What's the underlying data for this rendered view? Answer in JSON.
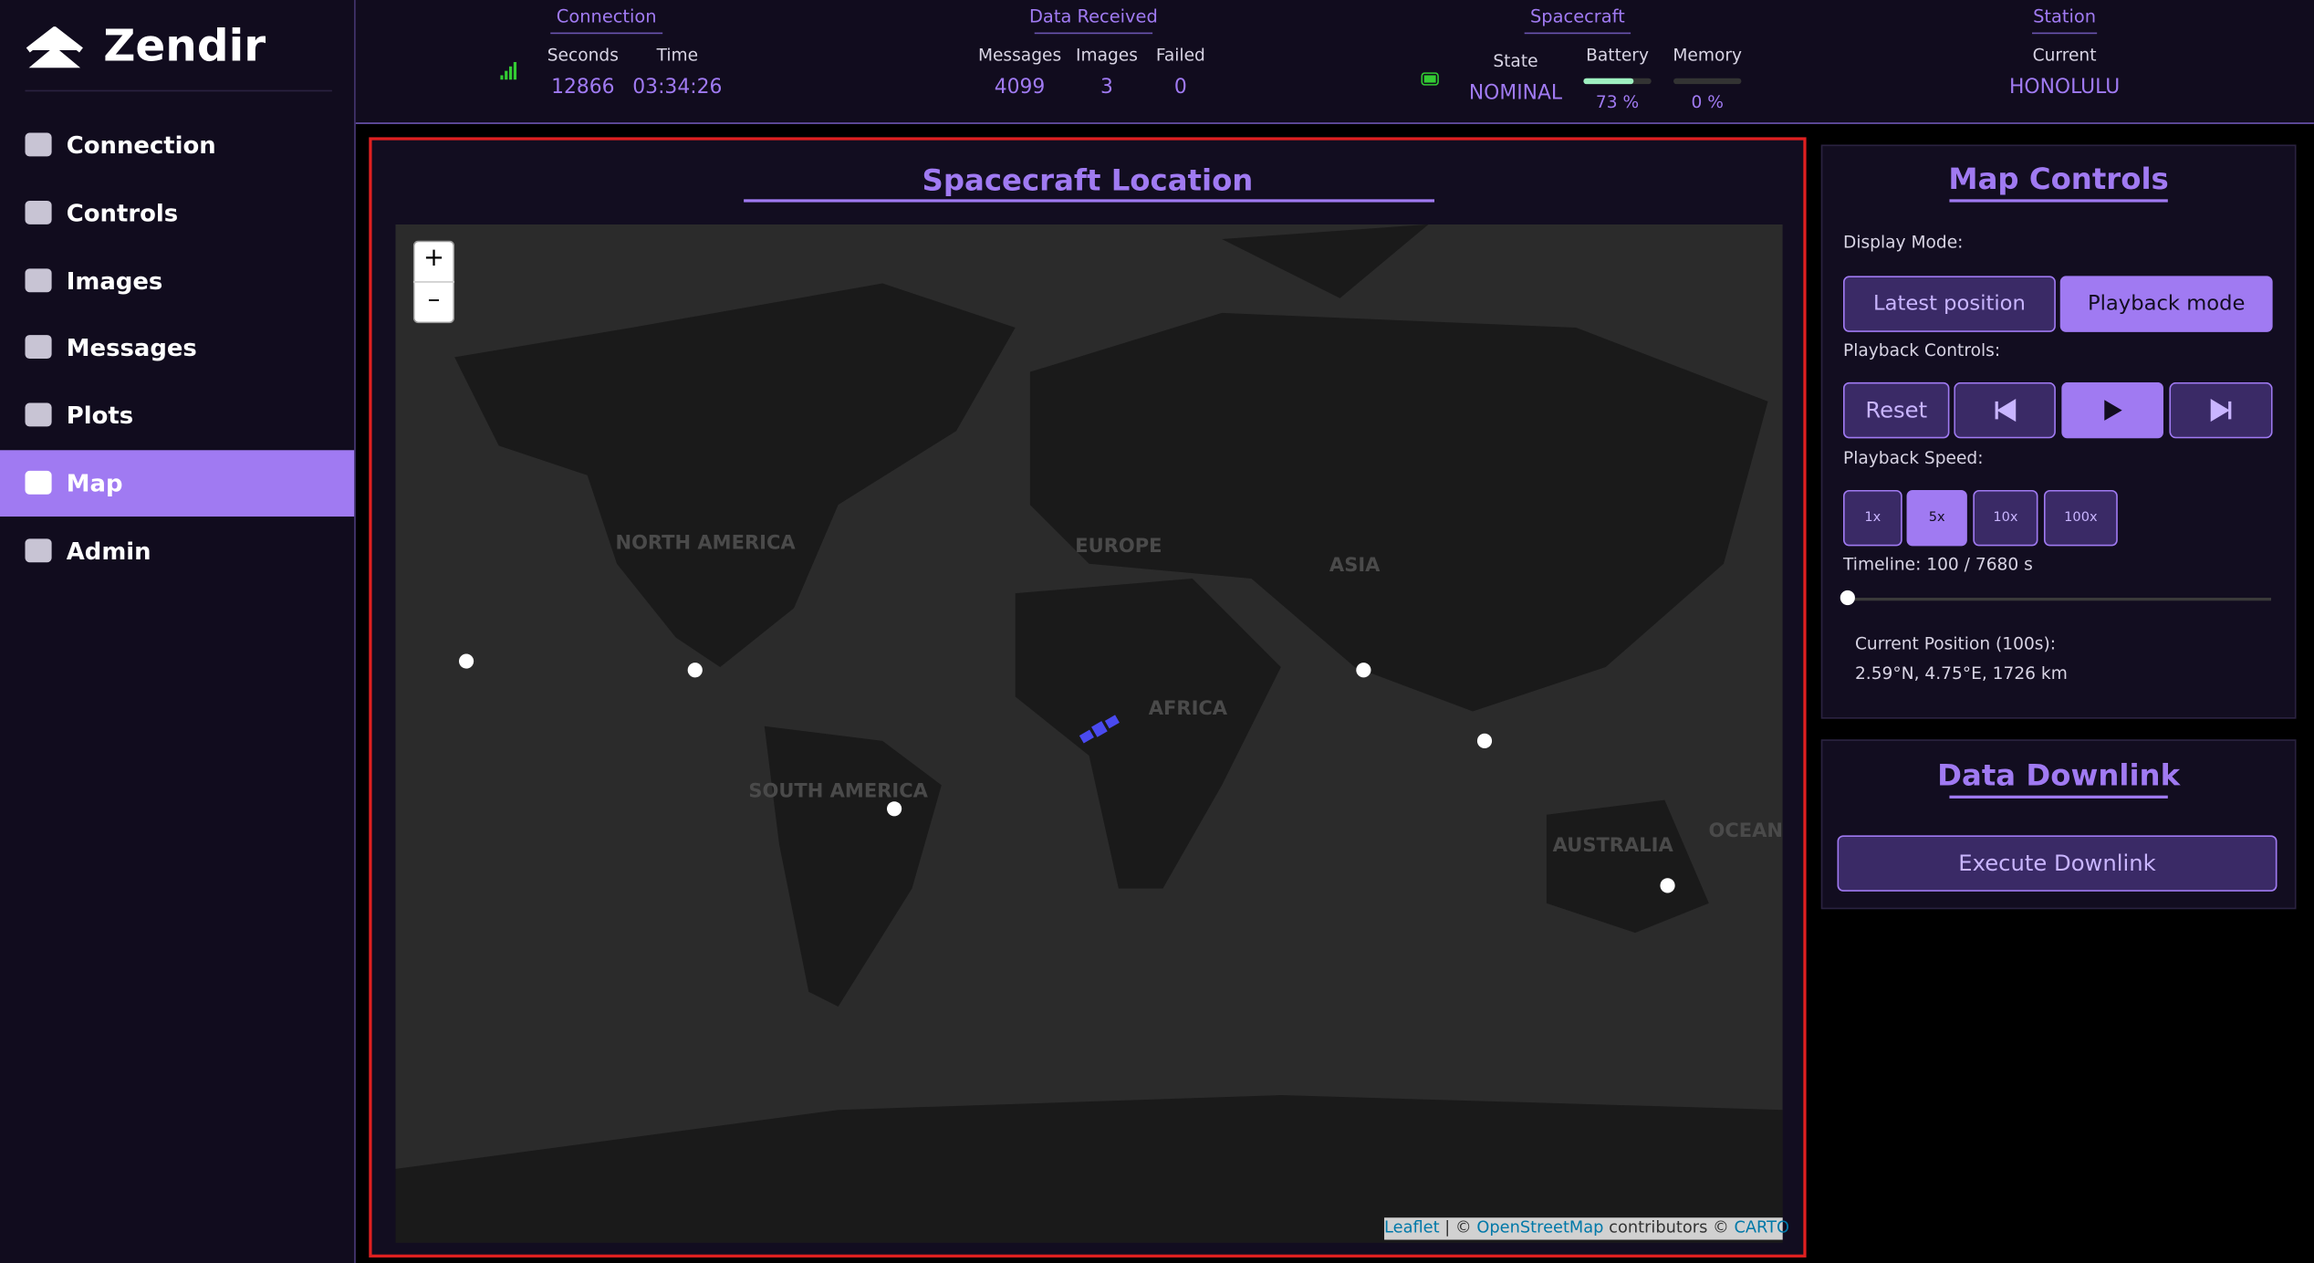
{
  "sidebar": {
    "brand": "Zendir",
    "nav": [
      "Connection",
      "Controls",
      "Images",
      "Messages",
      "Plots",
      "Map",
      "Admin"
    ]
  },
  "header": {
    "connection": {
      "title": "Connection",
      "seconds_label": "Seconds",
      "seconds": "12866",
      "time_label": "Time",
      "time": "03:34:26"
    },
    "data_received": {
      "title": "Data Received",
      "messages_label": "Messages",
      "messages": "4099",
      "images_label": "Images",
      "images": "3",
      "failed_label": "Failed",
      "failed": "0"
    },
    "spacecraft": {
      "title": "Spacecraft",
      "state_label": "State",
      "state": "NOMINAL",
      "battery_label": "Battery",
      "battery": {
        "value": 73,
        "label": "73 %"
      },
      "memory_label": "Memory",
      "memory": {
        "value": 0,
        "label": "0 %"
      }
    },
    "station": {
      "title": "Station",
      "current_label": "Current",
      "current": "HONOLULU"
    }
  },
  "map": {
    "title": "Spacecraft Location",
    "zoom_in": "+",
    "zoom_out": "–",
    "labels": [
      "NORTH AMERICA",
      "EUROPE",
      "ASIA",
      "AFRICA",
      "SOUTH AMERICA",
      "AUSTRALIA",
      "OCEAN"
    ],
    "attribution": {
      "leaflet": "Leaflet",
      "sep": "| ©",
      "osm": "OpenStreetMap",
      "contrib": "contributors ©",
      "carto": "CARTO"
    }
  },
  "map_controls": {
    "title": "Map Controls",
    "display_mode_label": "Display Mode:",
    "latest": "Latest position",
    "playback": "Playback mode",
    "playback_controls_label": "Playback Controls:",
    "reset": "Reset",
    "playback_speed_label": "Playback Speed:",
    "speeds": [
      "1x",
      "5x",
      "10x",
      "100x"
    ],
    "timeline": "Timeline: 100 / 7680 s",
    "current_position_label": "Current Position (100s):",
    "current_position": "2.59°N, 4.75°E, 1726 km"
  },
  "downlink": {
    "title": "Data Downlink",
    "execute": "Execute Downlink"
  }
}
